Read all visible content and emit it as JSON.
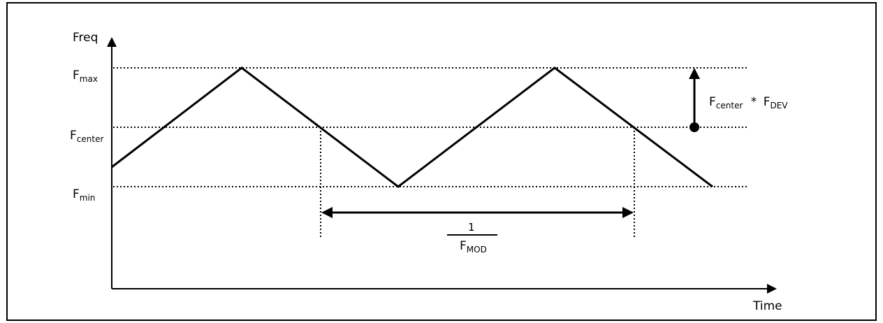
{
  "axes": {
    "y_label": "Freq",
    "x_label": "Time"
  },
  "levels": {
    "max": {
      "main": "F",
      "sub": "max"
    },
    "center": {
      "main": "F",
      "sub": "center"
    },
    "min": {
      "main": "F",
      "sub": "min"
    }
  },
  "deviation_label": {
    "a_main": "F",
    "a_sub": "center",
    "operator": "*",
    "b_main": "F",
    "b_sub": "DEV"
  },
  "period_label": {
    "numerator": "1",
    "den_main": "F",
    "den_sub": "MOD"
  },
  "colors": {
    "line": "#000000",
    "background": "#ffffff"
  }
}
